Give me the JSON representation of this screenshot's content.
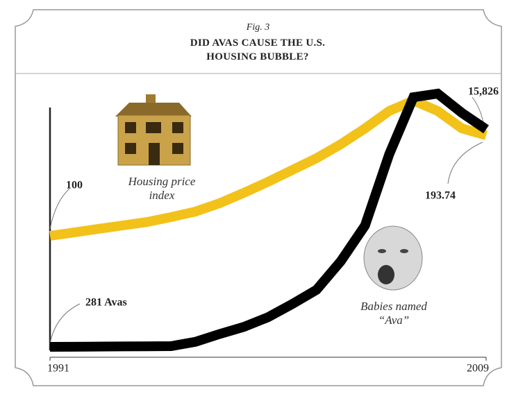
{
  "chart_data": {
    "type": "line",
    "figure_label": "Fig. 3",
    "title": "DID AVAS CAUSE THE U.S. HOUSING BUBBLE?",
    "x": [
      1991,
      1992,
      1993,
      1994,
      1995,
      1996,
      1997,
      1998,
      1999,
      2000,
      2001,
      2002,
      2003,
      2004,
      2005,
      2006,
      2007,
      2008,
      2009
    ],
    "xlim": [
      1991,
      2009
    ],
    "xticks": [
      1991,
      2009
    ],
    "series": [
      {
        "name": "Housing price index",
        "color": "#f2c21a",
        "values": [
          100,
          103.2,
          106.5,
          109.7,
          112.9,
          117.5,
          122.6,
          130.4,
          140.1,
          150.4,
          161.4,
          172.4,
          185.4,
          200.2,
          216.4,
          226.1,
          216.4,
          200.2,
          193.74
        ],
        "value_labels": [
          "100",
          null,
          null,
          null,
          null,
          null,
          null,
          null,
          null,
          null,
          null,
          null,
          null,
          null,
          null,
          null,
          null,
          null,
          "193.74"
        ]
      },
      {
        "name": "Babies named “Ava”",
        "color": "#000000",
        "values": [
          281,
          290,
          300,
          310,
          320,
          330,
          638,
          1198,
          1708,
          2398,
          3339,
          4358,
          6397,
          8946,
          14043,
          18121,
          18376,
          17000,
          15826
        ],
        "value_labels": [
          "281 Avas",
          null,
          null,
          null,
          null,
          null,
          null,
          null,
          null,
          null,
          null,
          null,
          null,
          null,
          null,
          null,
          null,
          null,
          "15,826"
        ]
      }
    ]
  }
}
